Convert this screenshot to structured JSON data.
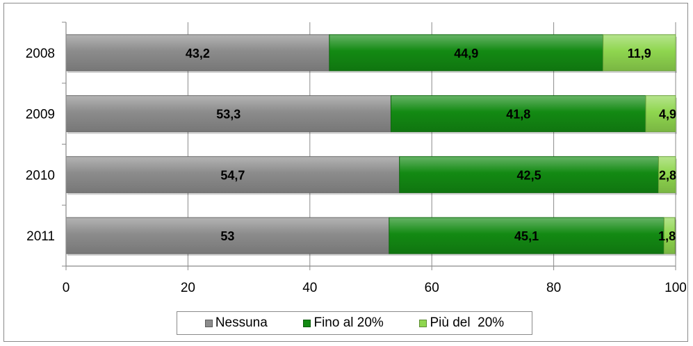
{
  "chart_data": {
    "type": "bar",
    "orientation": "horizontal",
    "stacked": true,
    "categories": [
      "2008",
      "2009",
      "2010",
      "2011"
    ],
    "series": [
      {
        "name": "Nessuna",
        "color": "#8c8c8c",
        "values": [
          43.2,
          53.3,
          54.7,
          53
        ],
        "labels": [
          "43,2",
          "53,3",
          "54,7",
          "53"
        ]
      },
      {
        "name": "Fino al 20%",
        "color": "#138a13",
        "values": [
          44.9,
          41.8,
          42.5,
          45.1
        ],
        "labels": [
          "44,9",
          "41,8",
          "42,5",
          "45,1"
        ]
      },
      {
        "name": "Più del  20%",
        "color": "#8fd64f",
        "values": [
          11.9,
          4.9,
          2.8,
          1.8
        ],
        "labels": [
          "11,9",
          "4,9",
          "2,8",
          "1,8"
        ]
      }
    ],
    "xlim": [
      0,
      100
    ],
    "xticks": [
      "0",
      "20",
      "40",
      "60",
      "80",
      "100"
    ],
    "grid": true,
    "legend_position": "bottom"
  }
}
